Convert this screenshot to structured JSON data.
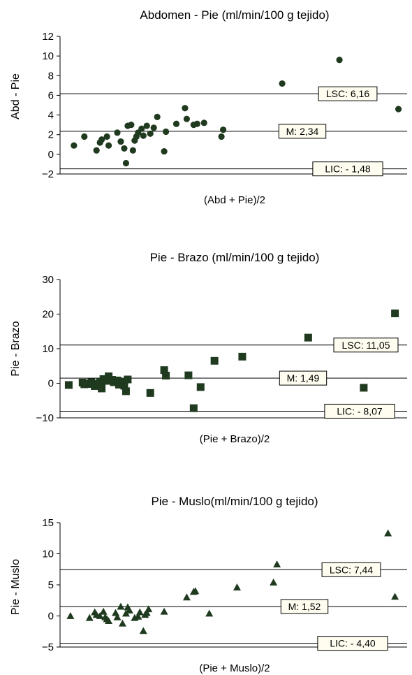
{
  "chart_data": [
    {
      "type": "scatter",
      "marker": "circle",
      "title": "Abdomen - Pie (ml/min/100 g tejido)",
      "xlabel": "(Abd + Pie)/2",
      "ylabel": "Abd - Pie",
      "ylim": [
        -2,
        12
      ],
      "yticks": [
        12,
        10,
        8,
        6,
        4,
        2,
        0,
        -2
      ],
      "ytick_labels": [
        "12",
        "10",
        "8",
        "6",
        "4",
        "2",
        "0",
        "−2"
      ],
      "xlim": [
        0,
        100
      ],
      "grid": false,
      "reference_lines": [
        {
          "label": "LSC: 6,16",
          "value": 6.16
        },
        {
          "label": "M: 2,34",
          "value": 2.34
        },
        {
          "label": "LIC: - 1,48",
          "value": -1.48
        }
      ],
      "points": [
        {
          "x": 4,
          "y": 0.9
        },
        {
          "x": 7,
          "y": 1.8
        },
        {
          "x": 10.5,
          "y": 0.4
        },
        {
          "x": 11.5,
          "y": 1.2
        },
        {
          "x": 12,
          "y": 1.5
        },
        {
          "x": 13.5,
          "y": 1.8
        },
        {
          "x": 14,
          "y": 0.9
        },
        {
          "x": 16.5,
          "y": 2.2
        },
        {
          "x": 17.5,
          "y": 1.3
        },
        {
          "x": 18.5,
          "y": 0.6
        },
        {
          "x": 19,
          "y": -0.9
        },
        {
          "x": 19.5,
          "y": 2.9
        },
        {
          "x": 20.5,
          "y": 3.0
        },
        {
          "x": 21,
          "y": 0.4
        },
        {
          "x": 21.5,
          "y": 1.4
        },
        {
          "x": 22,
          "y": 1.8
        },
        {
          "x": 22.5,
          "y": 2.2
        },
        {
          "x": 23.5,
          "y": 2.6
        },
        {
          "x": 24,
          "y": 1.9
        },
        {
          "x": 25,
          "y": 2.9
        },
        {
          "x": 26,
          "y": 2.1
        },
        {
          "x": 27,
          "y": 2.7
        },
        {
          "x": 28,
          "y": 3.8
        },
        {
          "x": 30,
          "y": 0.3
        },
        {
          "x": 30.5,
          "y": 2.3
        },
        {
          "x": 33.5,
          "y": 3.1
        },
        {
          "x": 36,
          "y": 4.7
        },
        {
          "x": 36.5,
          "y": 3.6
        },
        {
          "x": 38.5,
          "y": 3.0
        },
        {
          "x": 39.5,
          "y": 3.1
        },
        {
          "x": 41.5,
          "y": 3.2
        },
        {
          "x": 46.5,
          "y": 1.8
        },
        {
          "x": 47,
          "y": 2.5
        },
        {
          "x": 64,
          "y": 7.2
        },
        {
          "x": 80.5,
          "y": 9.6
        },
        {
          "x": 97.5,
          "y": 4.6
        }
      ]
    },
    {
      "type": "scatter",
      "marker": "square",
      "title": "Pie - Brazo (ml/min/100 g tejido)",
      "xlabel": "(Pie + Brazo)/2",
      "ylabel": "Pie - Brazo",
      "ylim": [
        -10,
        30
      ],
      "yticks": [
        30,
        20,
        10,
        0,
        -10
      ],
      "ytick_labels": [
        "30",
        "20",
        "10",
        "0",
        "−10"
      ],
      "xlim": [
        0,
        100
      ],
      "grid": false,
      "reference_lines": [
        {
          "label": "LSC: 11,05",
          "value": 11.05
        },
        {
          "label": "M: 1,49",
          "value": 1.49
        },
        {
          "label": "LIC: - 8,07",
          "value": -8.07
        }
      ],
      "points": [
        {
          "x": 2.5,
          "y": -0.5
        },
        {
          "x": 6.5,
          "y": 0.2
        },
        {
          "x": 7,
          "y": -0.3
        },
        {
          "x": 8,
          "y": -0.2
        },
        {
          "x": 9,
          "y": 0.3
        },
        {
          "x": 10,
          "y": -0.8
        },
        {
          "x": 10.5,
          "y": -0.2
        },
        {
          "x": 11.5,
          "y": 0.5
        },
        {
          "x": 12,
          "y": -1.5
        },
        {
          "x": 12.5,
          "y": 1.2
        },
        {
          "x": 13.5,
          "y": 0.7
        },
        {
          "x": 14,
          "y": 2.0
        },
        {
          "x": 15,
          "y": 1.0
        },
        {
          "x": 15.5,
          "y": 0.3
        },
        {
          "x": 16.5,
          "y": 0.8
        },
        {
          "x": 17,
          "y": -0.4
        },
        {
          "x": 18,
          "y": 0.5
        },
        {
          "x": 18.5,
          "y": -0.7
        },
        {
          "x": 19,
          "y": -2.3
        },
        {
          "x": 19.5,
          "y": 1.1
        },
        {
          "x": 26,
          "y": -2.8
        },
        {
          "x": 30,
          "y": 3.8
        },
        {
          "x": 30.5,
          "y": 2.2
        },
        {
          "x": 37,
          "y": 2.3
        },
        {
          "x": 38.5,
          "y": -7.2
        },
        {
          "x": 40.5,
          "y": -1.1
        },
        {
          "x": 44.5,
          "y": 6.5
        },
        {
          "x": 52.5,
          "y": 7.7
        },
        {
          "x": 71.5,
          "y": 13.2
        },
        {
          "x": 87.5,
          "y": -1.3
        },
        {
          "x": 96.5,
          "y": 20.2
        }
      ]
    },
    {
      "type": "scatter",
      "marker": "triangle",
      "title": "Pie - Muslo(ml/min/100 g tejido)",
      "xlabel": "(Pie + Muslo)/2",
      "ylabel": "Pie - Muslo",
      "ylim": [
        -5,
        15
      ],
      "yticks": [
        15,
        10,
        5,
        0,
        -5
      ],
      "ytick_labels": [
        "15",
        "10",
        "5",
        "0",
        "−5"
      ],
      "xlim": [
        0,
        100
      ],
      "grid": false,
      "reference_lines": [
        {
          "label": "LSC: 7,44",
          "value": 7.44
        },
        {
          "label": "M: 1,52",
          "value": 1.52
        },
        {
          "label": "LIC: - 4,40",
          "value": -4.4
        }
      ],
      "points": [
        {
          "x": 3,
          "y": 0.0
        },
        {
          "x": 8.5,
          "y": -0.3
        },
        {
          "x": 10,
          "y": 0.6
        },
        {
          "x": 10.5,
          "y": 0.2
        },
        {
          "x": 11.5,
          "y": 0.0
        },
        {
          "x": 12.5,
          "y": 0.7
        },
        {
          "x": 13,
          "y": -0.2
        },
        {
          "x": 13.5,
          "y": -0.5
        },
        {
          "x": 14,
          "y": -0.8
        },
        {
          "x": 16,
          "y": 0.5
        },
        {
          "x": 16.5,
          "y": -0.2
        },
        {
          "x": 17.5,
          "y": 1.5
        },
        {
          "x": 18,
          "y": -1.2
        },
        {
          "x": 19,
          "y": 0.4
        },
        {
          "x": 19.5,
          "y": 1.4
        },
        {
          "x": 20,
          "y": 0.9
        },
        {
          "x": 21.5,
          "y": -0.3
        },
        {
          "x": 22.5,
          "y": -0.1
        },
        {
          "x": 23,
          "y": 0.6
        },
        {
          "x": 24,
          "y": -2.4
        },
        {
          "x": 24.5,
          "y": 0.2
        },
        {
          "x": 25,
          "y": 0.5
        },
        {
          "x": 25.5,
          "y": 1.1
        },
        {
          "x": 30,
          "y": 0.7
        },
        {
          "x": 36.5,
          "y": 3.0
        },
        {
          "x": 38.5,
          "y": 3.9
        },
        {
          "x": 39,
          "y": 4.0
        },
        {
          "x": 43,
          "y": 0.4
        },
        {
          "x": 51,
          "y": 4.6
        },
        {
          "x": 61.5,
          "y": 5.4
        },
        {
          "x": 62.5,
          "y": 8.3
        },
        {
          "x": 94.5,
          "y": 13.3
        },
        {
          "x": 96.5,
          "y": 3.1
        }
      ]
    }
  ]
}
